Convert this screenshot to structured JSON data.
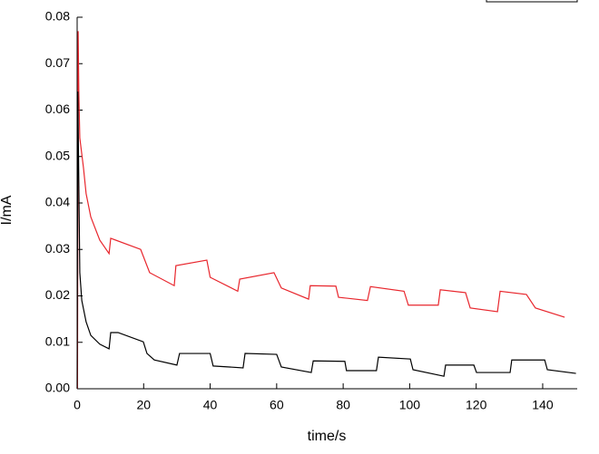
{
  "chart_data": {
    "type": "line",
    "xlabel": "time/s",
    "ylabel": "I/mA",
    "xlim": [
      0,
      150
    ],
    "ylim": [
      0,
      0.08
    ],
    "xticks": [
      0,
      20,
      40,
      60,
      80,
      100,
      120,
      140
    ],
    "yticks": [
      {
        "value": 0,
        "label": "0.00"
      },
      0.01,
      0.02,
      0.03,
      0.04,
      0.05,
      0.06,
      0.07,
      0.08
    ],
    "series": [
      {
        "color": "#e8262d",
        "x": [
          0.1,
          0.3,
          0.5,
          0.8,
          1.9,
          2.7,
          4.1,
          6.8,
          9.6,
          10.1,
          19.1,
          21.8,
          29.2,
          29.7,
          39,
          40,
          48.3,
          48.9,
          59.2,
          61.4,
          69.6,
          70.1,
          77.8,
          78.6,
          87.3,
          88.2,
          98.3,
          99.6,
          108.6,
          109.2,
          116.8,
          118.2,
          126.4,
          127.2,
          135.1,
          137.8,
          146.6
        ],
        "values": [
          0,
          0.077,
          0.064,
          0.054,
          0.0476,
          0.042,
          0.037,
          0.032,
          0.0291,
          0.0324,
          0.03,
          0.025,
          0.0222,
          0.0265,
          0.0277,
          0.024,
          0.021,
          0.0236,
          0.025,
          0.0217,
          0.0193,
          0.0222,
          0.0221,
          0.0197,
          0.019,
          0.022,
          0.021,
          0.018,
          0.018,
          0.0213,
          0.0207,
          0.0174,
          0.0166,
          0.021,
          0.0203,
          0.0174,
          0.0154
        ]
      },
      {
        "color": "#000000",
        "x": [
          0,
          0.2,
          0.8,
          1.4,
          2.7,
          4.1,
          6.8,
          9.6,
          10.1,
          12.3,
          19.9,
          21,
          23.2,
          30,
          30.8,
          40,
          40.9,
          49.9,
          50.5,
          60,
          61.4,
          70.4,
          71,
          80.5,
          81,
          90,
          90.6,
          100.2,
          101,
          110.3,
          110.8,
          119.3,
          120.1,
          130.2,
          130.7,
          140.6,
          141.4,
          150
        ],
        "values": [
          0,
          0.064,
          0.025,
          0.019,
          0.0144,
          0.0115,
          0.0096,
          0.0086,
          0.0121,
          0.0121,
          0.0101,
          0.0076,
          0.0062,
          0.0051,
          0.0076,
          0.0076,
          0.0049,
          0.0045,
          0.0076,
          0.0074,
          0.0047,
          0.0035,
          0.006,
          0.0059,
          0.0039,
          0.0039,
          0.0068,
          0.0064,
          0.0041,
          0.0027,
          0.0051,
          0.0051,
          0.0035,
          0.0035,
          0.0062,
          0.0062,
          0.0041,
          0.0033
        ]
      }
    ]
  }
}
